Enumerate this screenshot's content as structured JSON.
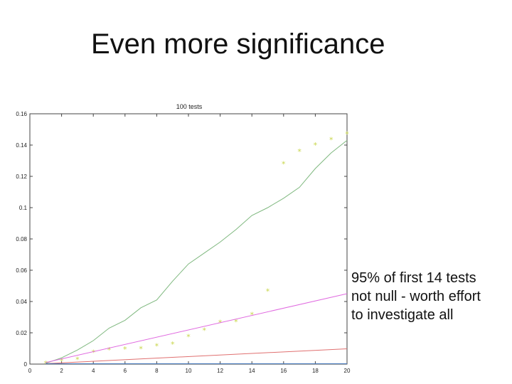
{
  "slide": {
    "title": "Even more significance",
    "annotation_lines": [
      "95% of first 14 tests",
      "not null - worth effort",
      "to investigate all"
    ]
  },
  "chart_data": {
    "type": "line",
    "title": "100 tests",
    "xlabel": "",
    "ylabel": "",
    "xlim": [
      0,
      20
    ],
    "ylim": [
      0,
      0.16
    ],
    "xticks": [
      0,
      2,
      4,
      6,
      8,
      10,
      12,
      14,
      16,
      18,
      20
    ],
    "yticks": [
      0,
      0.02,
      0.04,
      0.06,
      0.08,
      0.1,
      0.12,
      0.14,
      0.16
    ],
    "xtick_labels": [
      "0",
      "2",
      "4",
      "6",
      "8",
      "10",
      "12",
      "14",
      "16",
      "18",
      "20"
    ],
    "ytick_labels": [
      "0",
      "0.02",
      "0.04",
      "0.06",
      "0.08",
      "0.1",
      "0.12",
      "0.14",
      "0.16"
    ],
    "grid": false,
    "series": [
      {
        "kind": "points",
        "marker": "*",
        "color": "#c8d64a",
        "x": [
          1,
          2,
          3,
          4,
          5,
          6,
          7,
          8,
          9,
          10,
          11,
          12,
          13,
          14,
          15,
          16,
          17,
          18,
          19,
          20
        ],
        "y": [
          0.0005,
          0.002,
          0.003,
          0.0075,
          0.009,
          0.0095,
          0.0098,
          0.0115,
          0.0128,
          0.0175,
          0.0215,
          0.0265,
          0.027,
          0.0315,
          0.0465,
          0.128,
          0.136,
          0.14,
          0.1435,
          0.147
        ]
      },
      {
        "kind": "line",
        "color": "#7fb87f",
        "x": [
          1,
          2,
          3,
          4,
          5,
          6,
          7,
          8,
          9,
          10,
          11,
          12,
          13,
          14,
          15,
          16,
          17,
          18,
          19,
          20
        ],
        "y": [
          0.0005,
          0.004,
          0.009,
          0.015,
          0.023,
          0.028,
          0.036,
          0.041,
          0.053,
          0.064,
          0.071,
          0.078,
          0.086,
          0.095,
          0.1,
          0.106,
          0.113,
          0.125,
          0.135,
          0.143
        ]
      },
      {
        "kind": "line",
        "color": "#e06ae0",
        "x": [
          1,
          20
        ],
        "y": [
          0.001,
          0.045
        ]
      },
      {
        "kind": "line",
        "color": "#e07070",
        "x": [
          1,
          20
        ],
        "y": [
          0.0003,
          0.0098
        ]
      },
      {
        "kind": "line",
        "color": "#4477bb",
        "x": [
          1,
          20
        ],
        "y": [
          0.0002,
          0.0002
        ]
      }
    ]
  }
}
